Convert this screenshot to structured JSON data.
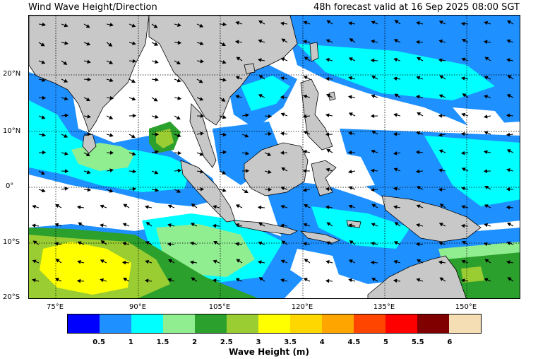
{
  "title_left": "Wind Wave Height/Direction",
  "title_right": "48h forecast valid at 16 Sep 2025 08:00 SGT",
  "lat_labels": [
    "20°N",
    "10°N",
    "0°",
    "10°S",
    "20°S"
  ],
  "lon_labels": [
    "75°E",
    "90°E",
    "105°E",
    "120°E",
    "135°E",
    "150°E"
  ],
  "colorbar": {
    "title": "Wave Height (m)",
    "ticks": [
      "0.5",
      "1",
      "1.5",
      "2",
      "2.5",
      "3",
      "3.5",
      "4",
      "4.5",
      "5",
      "5.5",
      "6"
    ],
    "colors": [
      "#0000ff",
      "#1e90ff",
      "#00ffff",
      "#90ee90",
      "#2ca02c",
      "#9acd32",
      "#ffff00",
      "#ffd700",
      "#ffa500",
      "#ff4500",
      "#ff0000",
      "#800000",
      "#f5deb3"
    ]
  },
  "map_colors": {
    "land": "#c8c8c8",
    "ocean_calm": "#ffffff"
  }
}
